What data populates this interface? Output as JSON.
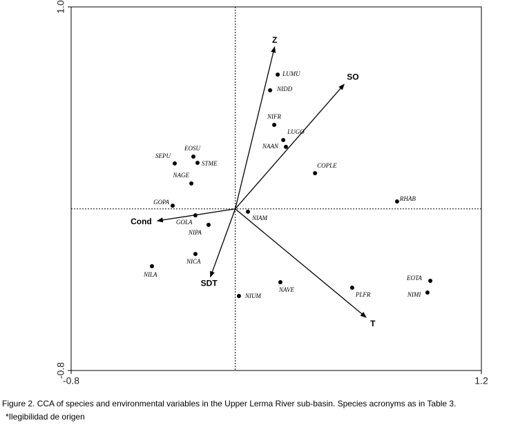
{
  "chart_data": {
    "type": "scatter",
    "points": {
      "labels": [
        "LUMU",
        "NIDD",
        "NIFR",
        "LUGO",
        "NAAN",
        "COPLE",
        "RHAB",
        "EOSU",
        "SEPU",
        "STME",
        "NAGE",
        "GOPA",
        "GOLA",
        "NIPA",
        "NIAM",
        "NICA",
        "NILA",
        "NIUM",
        "NAVE",
        "PLFR",
        "EOTA",
        "NIMI"
      ],
      "x": [
        0.207,
        0.17,
        0.19,
        0.234,
        0.247,
        0.389,
        0.789,
        -0.204,
        -0.295,
        -0.184,
        -0.214,
        -0.305,
        -0.194,
        -0.13,
        0.062,
        -0.194,
        -0.406,
        0.018,
        0.22,
        0.57,
        0.951,
        0.937
      ],
      "y": [
        0.665,
        0.587,
        0.416,
        0.341,
        0.307,
        0.177,
        0.037,
        0.259,
        0.225,
        0.228,
        0.126,
        0.016,
        -0.032,
        -0.079,
        -0.014,
        -0.223,
        -0.284,
        -0.431,
        -0.363,
        -0.39,
        -0.356,
        -0.414
      ]
    },
    "vectors": {
      "labels": [
        "Z",
        "SO",
        "T",
        "SDT",
        "Cond"
      ],
      "x": [
        0.192,
        0.531,
        0.638,
        -0.121,
        -0.38
      ],
      "y": [
        0.802,
        0.617,
        -0.537,
        -0.337,
        -0.059
      ]
    },
    "xlim": [
      -0.8,
      1.2
    ],
    "ylim": [
      -0.8,
      1.0
    ],
    "xticks": [
      -0.8,
      1.2
    ],
    "yticks": [
      -0.8,
      {
        "value": 1.0,
        "label": "1.0"
      }
    ],
    "caption": "Figure 2. CCA of species and environmental variables in the Upper Lerma River sub-basin. Species acronyms as in Table 3.",
    "note": "*Ilegibilidad de origen"
  }
}
